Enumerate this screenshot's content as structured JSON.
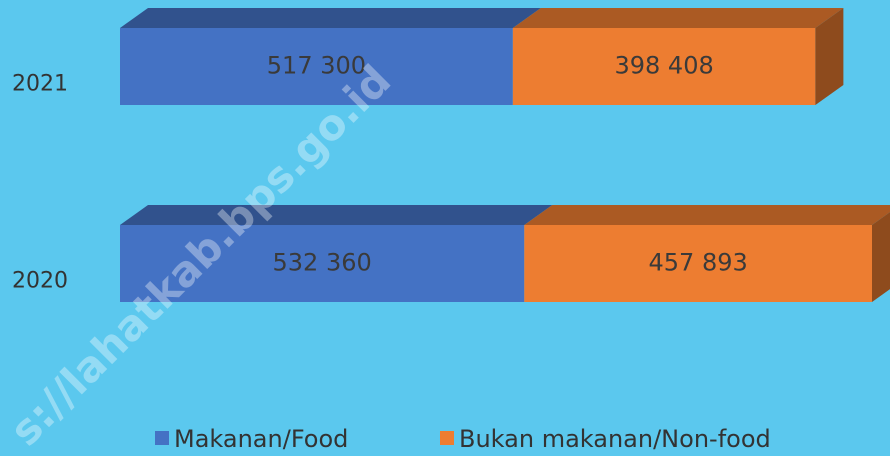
{
  "chart_data": {
    "type": "bar3d_stacked_horizontal",
    "categories": [
      "2021",
      "2020"
    ],
    "series": [
      {
        "name": "Makanan/Food",
        "color": "#4472c4",
        "values": [
          517300,
          532360
        ],
        "value_labels": [
          "517 300",
          "532 360"
        ]
      },
      {
        "name": "Bukan makanan/Non-food",
        "color": "#ed7d31",
        "values": [
          398408,
          457893
        ],
        "value_labels": [
          "398 408",
          "457 893"
        ]
      }
    ],
    "legend": "bottom",
    "watermark": "s://lahatkab.bps.go.id"
  }
}
